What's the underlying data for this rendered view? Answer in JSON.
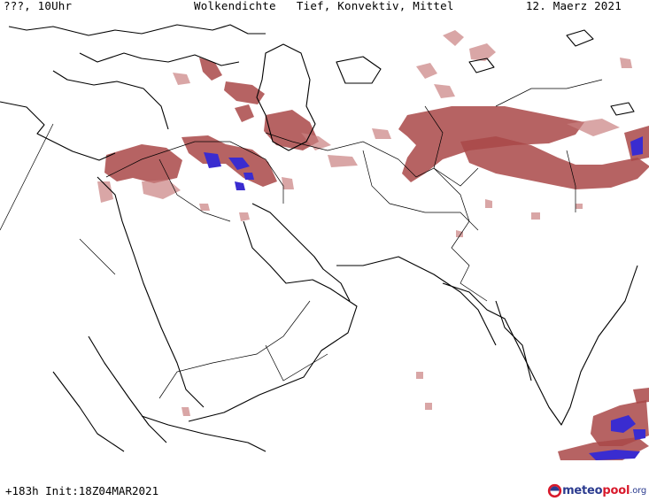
{
  "header": {
    "run_label": "???, 10Uhr",
    "title": "Wolkendichte   Tief, Konvektiv, Mittel",
    "date": "12. Maerz 2021"
  },
  "footer": {
    "run_info": "+183h Init:18Z04MAR2021",
    "logo_meteo": "meteo",
    "logo_pool": "pool",
    "logo_org": ".org"
  },
  "map": {
    "region": "Middle East / South Asia",
    "colors": {
      "cloud_dense": "#a94848",
      "cloud_light": "#c98080",
      "convective": "#3a2cd0",
      "coastline": "#000000"
    }
  }
}
